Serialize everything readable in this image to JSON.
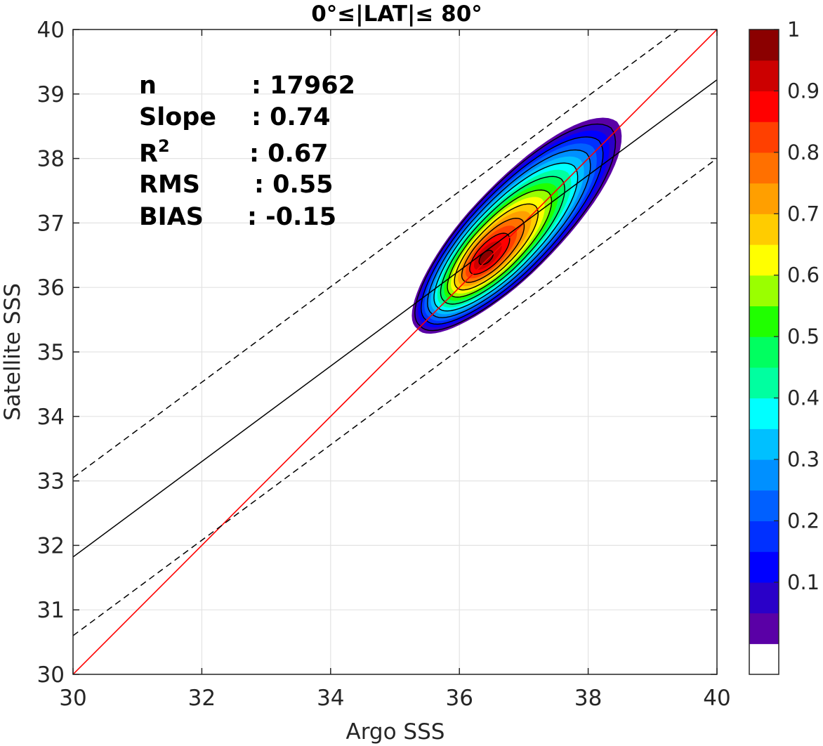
{
  "chart_data": {
    "type": "contour-scatter",
    "title": "0°≤|LAT|≤ 80°",
    "xlabel": "Argo SSS",
    "ylabel": "Satellite SSS",
    "xlim": [
      30,
      40
    ],
    "ylim": [
      30,
      40
    ],
    "xticks": [
      "30",
      "32",
      "34",
      "36",
      "38",
      "40"
    ],
    "yticks": [
      "30",
      "31",
      "32",
      "33",
      "34",
      "35",
      "36",
      "37",
      "38",
      "39",
      "40"
    ],
    "grid": true,
    "stats": [
      {
        "label": "n",
        "sep": ":",
        "value": "17962"
      },
      {
        "label": "Slope",
        "sep": ":",
        "value": "0.74"
      },
      {
        "label": "R",
        "sup": "2",
        "sep": ":",
        "value": "0.67"
      },
      {
        "label": "RMS",
        "sep": ":",
        "value": "0.55"
      },
      {
        "label": "BIAS",
        "sep": ":",
        "value": "-0.15"
      }
    ],
    "lines": {
      "identity": {
        "slope": 1.0,
        "intercept": 0.0,
        "color": "#ff0000"
      },
      "fit": {
        "slope": 0.74,
        "x0": 30,
        "y0": 31.82,
        "color": "#000000"
      },
      "fit_upper": {
        "slope": 0.74,
        "x0": 30,
        "y0": 33.05,
        "dashed": true
      },
      "fit_lower": {
        "slope": 0.74,
        "x0": 30,
        "y0": 30.6,
        "dashed": true
      }
    },
    "density": {
      "center": [
        36.4,
        36.45
      ],
      "peak": 1.0,
      "outer_extent_x": [
        35.15,
        37.8
      ],
      "outer_extent_y": [
        35.35,
        38.1
      ]
    },
    "colorbar": {
      "range": [
        0,
        1
      ],
      "tick_labels": [
        "0.1",
        "0.2",
        "0.3",
        "0.4",
        "0.5",
        "0.6",
        "0.7",
        "0.8",
        "0.9",
        "1"
      ],
      "tick_values": [
        0.1,
        0.2,
        0.3,
        0.4,
        0.5,
        0.6,
        0.7,
        0.8,
        0.9,
        1.0
      ],
      "levels": 20,
      "colors": [
        "#ffffff",
        "#5a00a6",
        "#2a00c8",
        "#0000ff",
        "#0030ff",
        "#0060ff",
        "#0090ff",
        "#00c0ff",
        "#00ffff",
        "#00ffa0",
        "#00ff60",
        "#20ff00",
        "#9aff00",
        "#ffff00",
        "#ffcc00",
        "#ff9f00",
        "#ff7000",
        "#ff4000",
        "#ff0000",
        "#cc0000",
        "#8b0000"
      ]
    }
  }
}
